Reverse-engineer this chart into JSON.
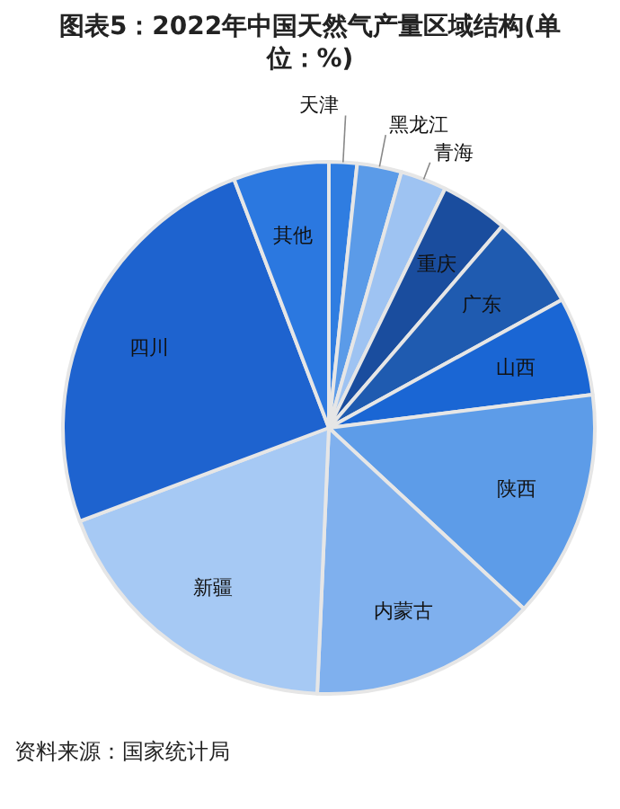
{
  "chart_data": {
    "type": "pie",
    "title": "图表5：2022年中国天然气产量区域结构(单位：%)",
    "categories": [
      "天津",
      "黑龙江",
      "青海",
      "重庆",
      "广东",
      "山西",
      "陕西",
      "内蒙古",
      "新疆",
      "四川",
      "其他"
    ],
    "values": [
      1.7,
      2.7,
      2.8,
      4.1,
      5.7,
      6.0,
      13.9,
      13.8,
      18.6,
      24.9,
      5.8
    ],
    "colors": [
      "#2f7de1",
      "#5b9be8",
      "#9ec3f2",
      "#1a4d9e",
      "#1f5bb0",
      "#1a66d4",
      "#5d9ce8",
      "#7fb0ee",
      "#a6c9f4",
      "#1e63cf",
      "#2b78e0"
    ],
    "annotations": [
      "资料来源：国家统计局"
    ]
  }
}
